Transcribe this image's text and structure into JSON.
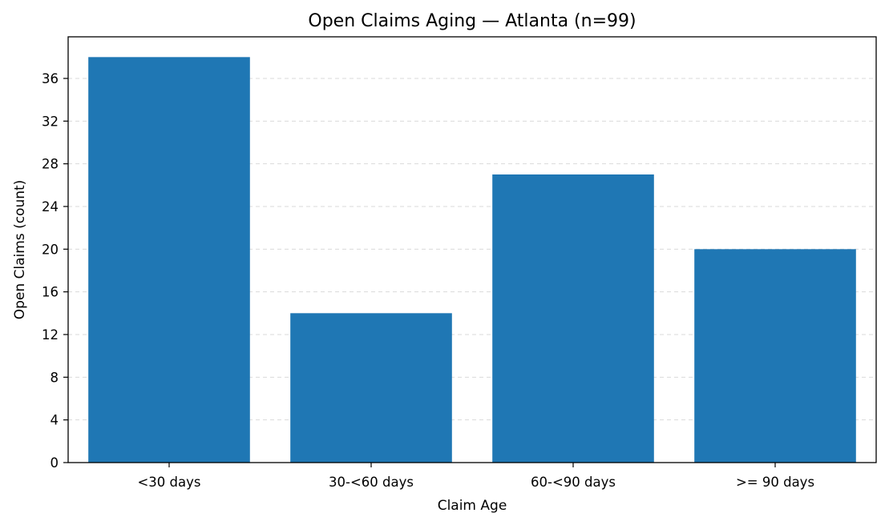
{
  "chart_data": {
    "type": "bar",
    "title": "Open Claims Aging — Atlanta  (n=99)",
    "xlabel": "Claim Age",
    "ylabel": "Open Claims (count)",
    "categories": [
      "<30 days",
      "30-<60 days",
      "60-<90 days",
      ">= 90 days"
    ],
    "values": [
      38,
      14,
      27,
      20
    ],
    "ylim": [
      0,
      39.9
    ],
    "yticks": [
      0,
      4,
      8,
      12,
      16,
      20,
      24,
      28,
      32,
      36
    ],
    "grid": "y-dashed",
    "legend": "none",
    "bar_color": "#1f77b4"
  }
}
